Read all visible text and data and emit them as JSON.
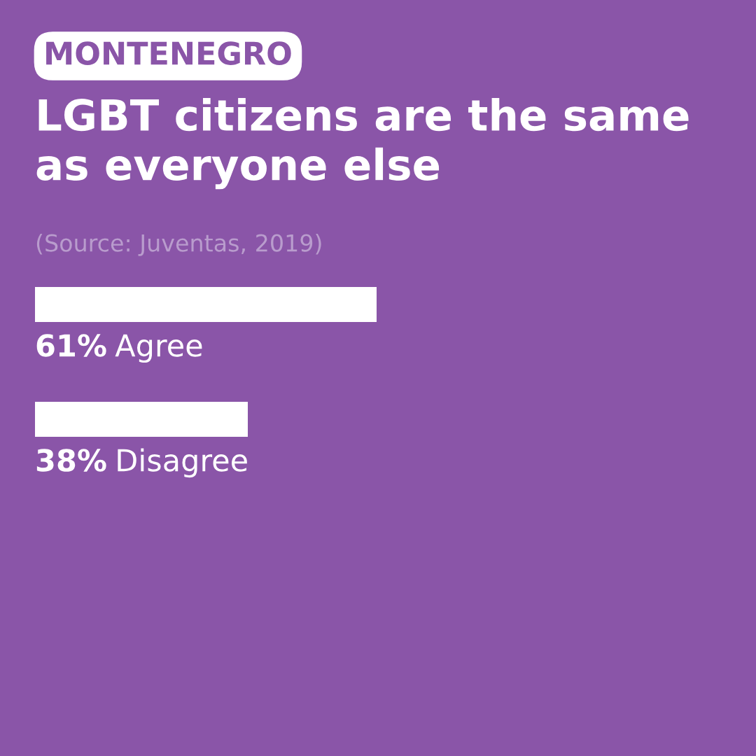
{
  "chart_data": {
    "type": "bar",
    "orientation": "horizontal",
    "subtitle": "MONTENEGRO",
    "title": "LGBT citizens are the same\nas everyone else",
    "annotations": [
      "(Source: Juventas, 2019)"
    ],
    "categories": [
      "Agree",
      "Disagree"
    ],
    "values": [
      61,
      38
    ],
    "value_labels": [
      "61%",
      "38%"
    ],
    "color": "#ffffff"
  }
}
